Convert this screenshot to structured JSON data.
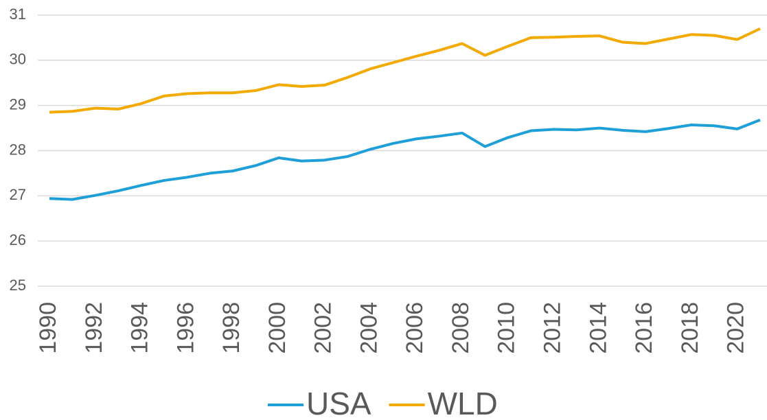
{
  "chart_data": {
    "type": "line",
    "x": [
      1990,
      1991,
      1992,
      1993,
      1994,
      1995,
      1996,
      1997,
      1998,
      1999,
      2000,
      2001,
      2002,
      2003,
      2004,
      2005,
      2006,
      2007,
      2008,
      2009,
      2010,
      2011,
      2012,
      2013,
      2014,
      2015,
      2016,
      2017,
      2018,
      2019,
      2020,
      2021
    ],
    "series": [
      {
        "name": "USA",
        "color": "#1f9fd8",
        "values": [
          26.94,
          26.92,
          27.01,
          27.11,
          27.23,
          27.34,
          27.41,
          27.5,
          27.55,
          27.67,
          27.84,
          27.77,
          27.79,
          27.87,
          28.03,
          28.16,
          28.26,
          28.32,
          28.39,
          28.09,
          28.29,
          28.44,
          28.47,
          28.46,
          28.5,
          28.45,
          28.42,
          28.49,
          28.57,
          28.55,
          28.48,
          28.68
        ]
      },
      {
        "name": "WLD",
        "color": "#f2a900",
        "values": [
          28.85,
          28.87,
          28.94,
          28.92,
          29.04,
          29.21,
          29.26,
          29.28,
          29.28,
          29.33,
          29.46,
          29.42,
          29.45,
          29.62,
          29.81,
          29.95,
          30.09,
          30.22,
          30.37,
          30.11,
          30.31,
          30.5,
          30.51,
          30.53,
          30.54,
          30.4,
          30.37,
          30.47,
          30.57,
          30.55,
          30.46,
          30.7
        ]
      }
    ],
    "xlim": [
      1990,
      2021
    ],
    "xticks": [
      1990,
      1992,
      1994,
      1996,
      1998,
      2000,
      2002,
      2004,
      2006,
      2008,
      2010,
      2012,
      2014,
      2016,
      2018,
      2020
    ],
    "ylim": [
      25,
      31
    ],
    "yticks": [
      25,
      26,
      27,
      28,
      29,
      30,
      31
    ],
    "grid": true,
    "legend": "bottom"
  }
}
